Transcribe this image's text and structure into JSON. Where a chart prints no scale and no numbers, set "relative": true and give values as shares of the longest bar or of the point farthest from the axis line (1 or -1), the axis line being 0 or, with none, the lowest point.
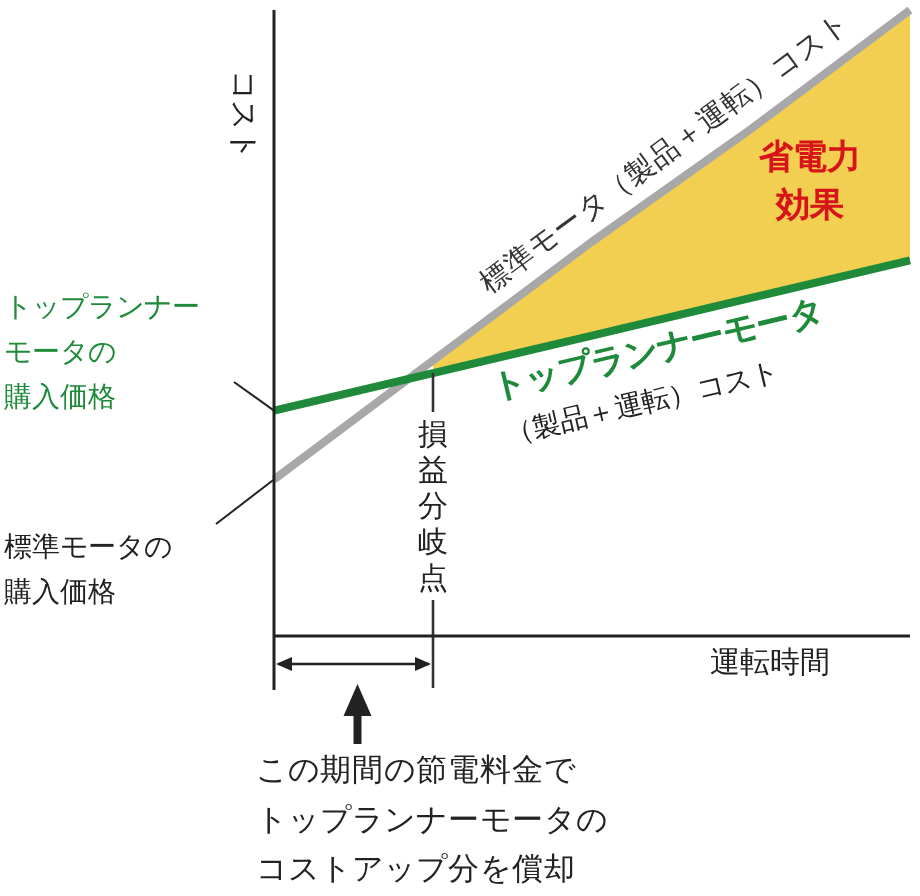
{
  "chart_data": {
    "type": "line",
    "relative": true,
    "categories": [
      null,
      null,
      null,
      null,
      null
    ],
    "ylabel": "コスト",
    "xlabel": "運転時間",
    "series": [
      {
        "name": "標準モータ（製品＋運転）コスト",
        "color": "#a8a8a8",
        "values": [
          0.25,
          0.44,
          0.63,
          0.81,
          1
        ]
      },
      {
        "name": "トップランナーモータ",
        "color": "#1e8a3a",
        "values": [
          0.36,
          0.42,
          0.48,
          0.54,
          0.6
        ]
      },
      {
        "type": "area",
        "name": "省電力効果",
        "color": "#f2cf50",
        "values": [
          null,
          0.44,
          0.63,
          0.81,
          1
        ]
      }
    ],
    "annotations": [
      "（製品＋運転）コスト",
      "トップランナーモータの購入価格",
      "標準モータの購入価格",
      "この期間の節電料金でトップランナーモータのコストアップ分を償却",
      "損益分岐点"
    ],
    "marker": "none",
    "line_style": "solid"
  }
}
